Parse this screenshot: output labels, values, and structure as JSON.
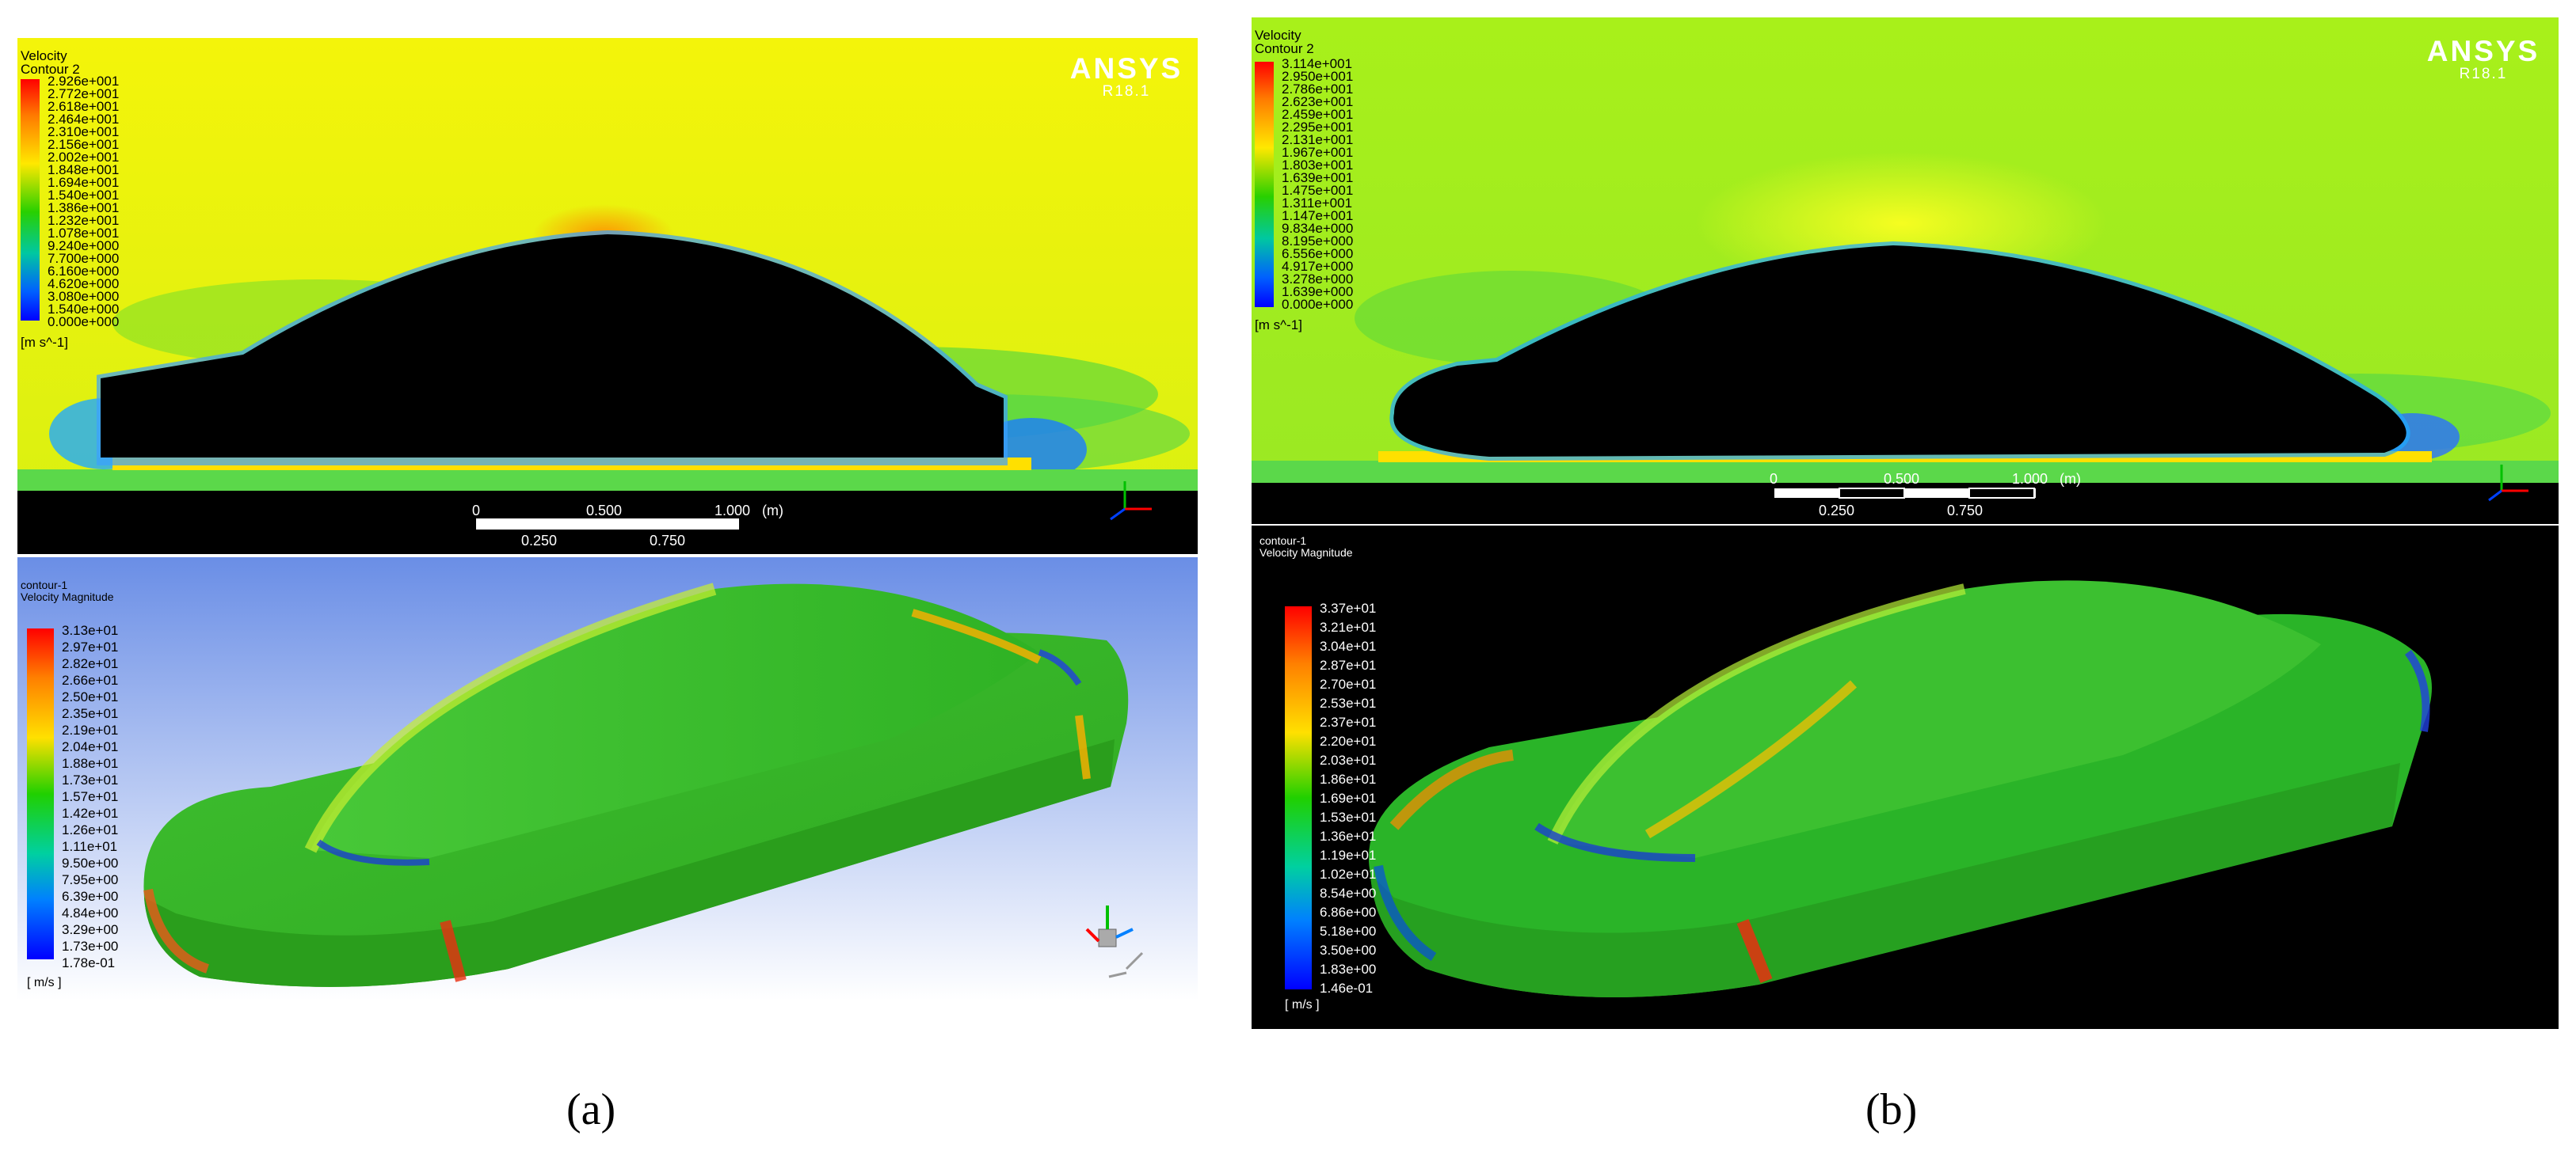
{
  "panels": [
    {
      "id": "a",
      "caption": "(a)",
      "contour2d": {
        "title_lines": [
          "Velocity",
          "Contour 2"
        ],
        "unit": "[m s^-1]",
        "levels": [
          "2.926e+001",
          "2.772e+001",
          "2.618e+001",
          "2.464e+001",
          "2.310e+001",
          "2.156e+001",
          "2.002e+001",
          "1.848e+001",
          "1.694e+001",
          "1.540e+001",
          "1.386e+001",
          "1.232e+001",
          "1.078e+001",
          "9.240e+000",
          "7.700e+000",
          "6.160e+000",
          "4.620e+000",
          "3.080e+000",
          "1.540e+000",
          "0.000e+000"
        ],
        "brand": "ANSYS",
        "version": "R18.1",
        "scale_top": [
          "0",
          "0.500",
          "1.000",
          "(m)"
        ],
        "scale_bottom": [
          "0.250",
          "0.750"
        ]
      },
      "contour3d": {
        "title_lines": [
          "contour-1",
          "Velocity Magnitude"
        ],
        "unit": "[ m/s ]",
        "levels": [
          "3.13e+01",
          "2.97e+01",
          "2.82e+01",
          "2.66e+01",
          "2.50e+01",
          "2.35e+01",
          "2.19e+01",
          "2.04e+01",
          "1.88e+01",
          "1.73e+01",
          "1.57e+01",
          "1.42e+01",
          "1.26e+01",
          "1.11e+01",
          "9.50e+00",
          "7.95e+00",
          "6.39e+00",
          "4.84e+00",
          "3.29e+00",
          "1.73e+00",
          "1.78e-01"
        ]
      }
    },
    {
      "id": "b",
      "caption": "(b)",
      "contour2d": {
        "title_lines": [
          "Velocity",
          "Contour 2"
        ],
        "unit": "[m s^-1]",
        "levels": [
          "3.114e+001",
          "2.950e+001",
          "2.786e+001",
          "2.623e+001",
          "2.459e+001",
          "2.295e+001",
          "2.131e+001",
          "1.967e+001",
          "1.803e+001",
          "1.639e+001",
          "1.475e+001",
          "1.311e+001",
          "1.147e+001",
          "9.834e+000",
          "8.195e+000",
          "6.556e+000",
          "4.917e+000",
          "3.278e+000",
          "1.639e+000",
          "0.000e+000"
        ],
        "brand": "ANSYS",
        "version": "R18.1",
        "scale_top": [
          "0",
          "0.500",
          "1.000",
          "(m)"
        ],
        "scale_bottom": [
          "0.250",
          "0.750"
        ]
      },
      "contour3d": {
        "title_lines": [
          "contour-1",
          "Velocity Magnitude"
        ],
        "unit": "[ m/s ]",
        "levels": [
          "3.37e+01",
          "3.21e+01",
          "3.04e+01",
          "2.87e+01",
          "2.70e+01",
          "2.53e+01",
          "2.37e+01",
          "2.20e+01",
          "2.03e+01",
          "1.86e+01",
          "1.69e+01",
          "1.53e+01",
          "1.36e+01",
          "1.19e+01",
          "1.02e+01",
          "8.54e+00",
          "6.86e+00",
          "5.18e+00",
          "3.50e+00",
          "1.83e+00",
          "1.46e-01"
        ]
      }
    }
  ],
  "colors": {
    "colormap": [
      "#ff0000",
      "#ff7a00",
      "#ffe800",
      "#8ae000",
      "#1fd000",
      "#00c8a0",
      "#0060ff",
      "#0000ff"
    ],
    "field_a": "#f2f20a",
    "field_b": "#b6f21c",
    "bg_3d_a_top": "#6a8ee6",
    "bg_3d_a_bottom": "#ffffff",
    "bg_3d_b": "#000000"
  }
}
